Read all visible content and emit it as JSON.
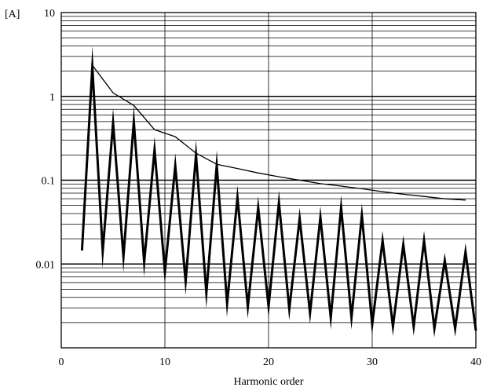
{
  "chart_data": {
    "type": "line",
    "title": "",
    "xlabel": "Harmonic order",
    "ylabel": "[A]",
    "xlim": [
      0,
      40
    ],
    "ylim": [
      0.001,
      10
    ],
    "y_scale": "log",
    "grid": true,
    "legend": "none",
    "x_ticks": [
      {
        "value": 0,
        "label": "0"
      },
      {
        "value": 10,
        "label": "10"
      },
      {
        "value": 20,
        "label": "20"
      },
      {
        "value": 30,
        "label": "30"
      },
      {
        "value": 40,
        "label": "40"
      }
    ],
    "y_ticks": [
      {
        "value": 10,
        "label": "10"
      },
      {
        "value": 1,
        "label": "1"
      },
      {
        "value": 0.1,
        "label": "0.1"
      },
      {
        "value": 0.01,
        "label": "0.01"
      }
    ],
    "series": [
      {
        "color": "#000000",
        "width": 3,
        "x": [
          2,
          3,
          4,
          5,
          6,
          7,
          8,
          9,
          10,
          11,
          12,
          13,
          14,
          15,
          16,
          17,
          18,
          19,
          20,
          21,
          22,
          23,
          24,
          25,
          26,
          27,
          28,
          29,
          30,
          31,
          32,
          33,
          34,
          35,
          36,
          37,
          38,
          39,
          40
        ],
        "y": [
          0.0145,
          2.25,
          0.0142,
          0.48,
          0.0122,
          0.5,
          0.0105,
          0.23,
          0.0081,
          0.148,
          0.0062,
          0.2,
          0.0045,
          0.15,
          0.0034,
          0.062,
          0.0031,
          0.047,
          0.0031,
          0.054,
          0.0029,
          0.035,
          0.0026,
          0.036,
          0.0023,
          0.047,
          0.0023,
          0.038,
          0.0019,
          0.019,
          0.0018,
          0.017,
          0.0018,
          0.019,
          0.0017,
          0.011,
          0.0017,
          0.014,
          0.0016
        ]
      },
      {
        "color": "#000000",
        "width": 1.3,
        "x": [
          3,
          5,
          7,
          9,
          11,
          13,
          15,
          17,
          19,
          21,
          23,
          25,
          27,
          29,
          31,
          33,
          35,
          37,
          39
        ],
        "y": [
          2.35,
          1.1,
          0.78,
          0.4,
          0.33,
          0.21,
          0.155,
          0.138,
          0.122,
          0.11,
          0.1,
          0.091,
          0.085,
          0.079,
          0.073,
          0.068,
          0.064,
          0.06,
          0.058
        ]
      }
    ]
  }
}
